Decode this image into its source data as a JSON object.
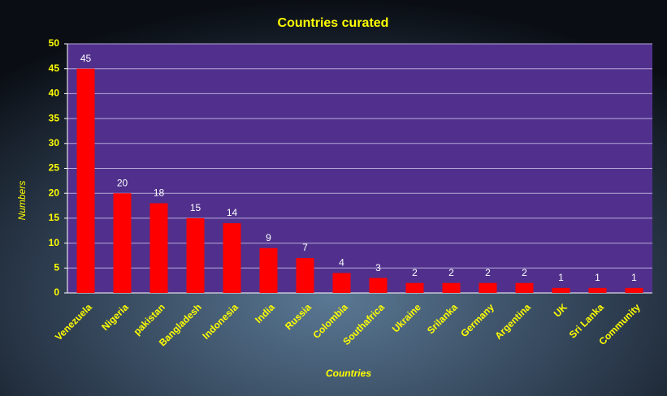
{
  "chart_data": {
    "type": "bar",
    "title": "Countries curated",
    "x_label": "Countries",
    "y_label": "Numbers",
    "categories": [
      "Venezuela",
      "Nigeria",
      "pakistan",
      "Bangladesh",
      "Indonesia",
      "India",
      "Russia",
      "Colombia",
      "Southafrica",
      "Ukraine",
      "Srilanka",
      "Germany",
      "Argentina",
      "UK",
      "Sri Lanka",
      "Community"
    ],
    "values": [
      45,
      20,
      18,
      15,
      14,
      9,
      7,
      4,
      3,
      2,
      2,
      2,
      2,
      1,
      1,
      1
    ],
    "color": "#ff0000",
    "ylim": [
      0,
      50
    ],
    "yticks": [
      0,
      5,
      10,
      15,
      20,
      25,
      30,
      35,
      40,
      45,
      50
    ],
    "grid": true
  }
}
